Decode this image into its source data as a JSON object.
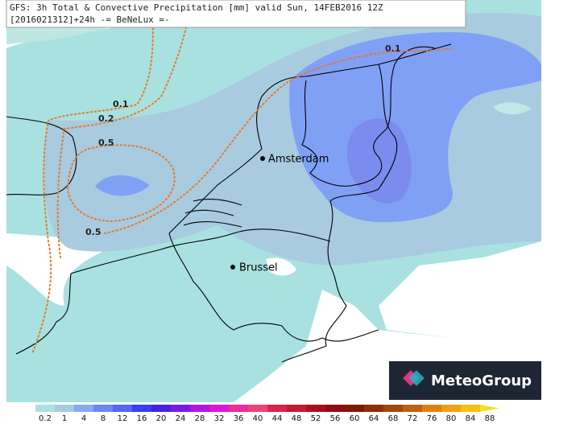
{
  "header": {
    "line1": "GFS: 3h Total & Convective Precipitation [mm] valid Sun, 14FEB2016 12Z",
    "line2": "[2016021312]+24h -= BeNeLux =-"
  },
  "cities": [
    {
      "name": "Amsterdam"
    },
    {
      "name": "Brussel"
    }
  ],
  "contour_labels": [
    "0.1",
    "0.1",
    "0.2",
    "0.5",
    "0.5"
  ],
  "logo": {
    "text": "MeteoGroup"
  },
  "legend": {
    "items": [
      {
        "label": "0.2",
        "color": "#a9e1e0"
      },
      {
        "label": "1",
        "color": "#a8cbe0"
      },
      {
        "label": "4",
        "color": "#8aa8f8"
      },
      {
        "label": "8",
        "color": "#6f86f6"
      },
      {
        "label": "12",
        "color": "#5566f8"
      },
      {
        "label": "16",
        "color": "#3b3cf6"
      },
      {
        "label": "20",
        "color": "#4420e8"
      },
      {
        "label": "24",
        "color": "#7a18e8"
      },
      {
        "label": "28",
        "color": "#b414e8"
      },
      {
        "label": "32",
        "color": "#e014d8"
      },
      {
        "label": "36",
        "color": "#f02aa0"
      },
      {
        "label": "40",
        "color": "#f0407a"
      },
      {
        "label": "44",
        "color": "#e02050"
      },
      {
        "label": "48",
        "color": "#c81830"
      },
      {
        "label": "52",
        "color": "#a81020"
      },
      {
        "label": "56",
        "color": "#900c14"
      },
      {
        "label": "60",
        "color": "#801808"
      },
      {
        "label": "64",
        "color": "#8a3008"
      },
      {
        "label": "68",
        "color": "#a04810"
      },
      {
        "label": "72",
        "color": "#c06010"
      },
      {
        "label": "76",
        "color": "#e08010"
      },
      {
        "label": "80",
        "color": "#f0a010"
      },
      {
        "label": "84",
        "color": "#f8c010"
      },
      {
        "label": "88",
        "color": "#f8e020"
      }
    ]
  }
}
